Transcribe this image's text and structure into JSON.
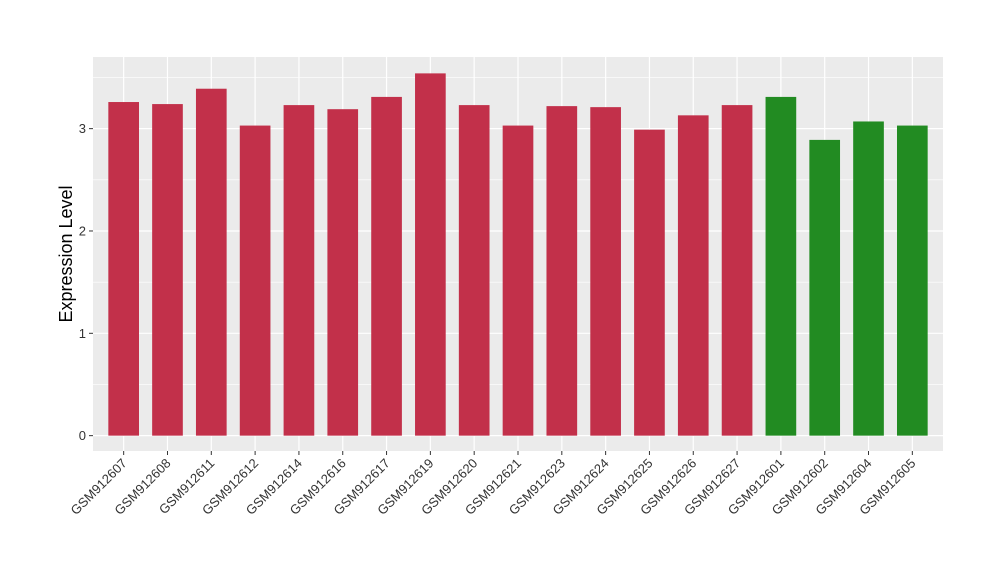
{
  "chart_data": {
    "type": "bar",
    "title": "",
    "xlabel": "",
    "ylabel": "Expression Level",
    "ylim": [
      -0.15,
      3.7
    ],
    "yticks": [
      0,
      1,
      2,
      3
    ],
    "grid": true,
    "panel_background": "#EBEBEB",
    "grid_color": "#FFFFFF",
    "categories": [
      "GSM912607",
      "GSM912608",
      "GSM912611",
      "GSM912612",
      "GSM912614",
      "GSM912616",
      "GSM912617",
      "GSM912619",
      "GSM912620",
      "GSM912621",
      "GSM912623",
      "GSM912624",
      "GSM912625",
      "GSM912626",
      "GSM912627",
      "GSM912601",
      "GSM912602",
      "GSM912604",
      "GSM912605"
    ],
    "values": [
      3.26,
      3.24,
      3.39,
      3.03,
      3.23,
      3.19,
      3.31,
      3.54,
      3.23,
      3.03,
      3.22,
      3.21,
      2.99,
      3.13,
      3.23,
      3.31,
      2.89,
      3.07,
      3.03
    ],
    "bar_colors": [
      "#C2304A",
      "#C2304A",
      "#C2304A",
      "#C2304A",
      "#C2304A",
      "#C2304A",
      "#C2304A",
      "#C2304A",
      "#C2304A",
      "#C2304A",
      "#C2304A",
      "#C2304A",
      "#C2304A",
      "#C2304A",
      "#C2304A",
      "#228B22",
      "#228B22",
      "#228B22",
      "#228B22"
    ]
  }
}
